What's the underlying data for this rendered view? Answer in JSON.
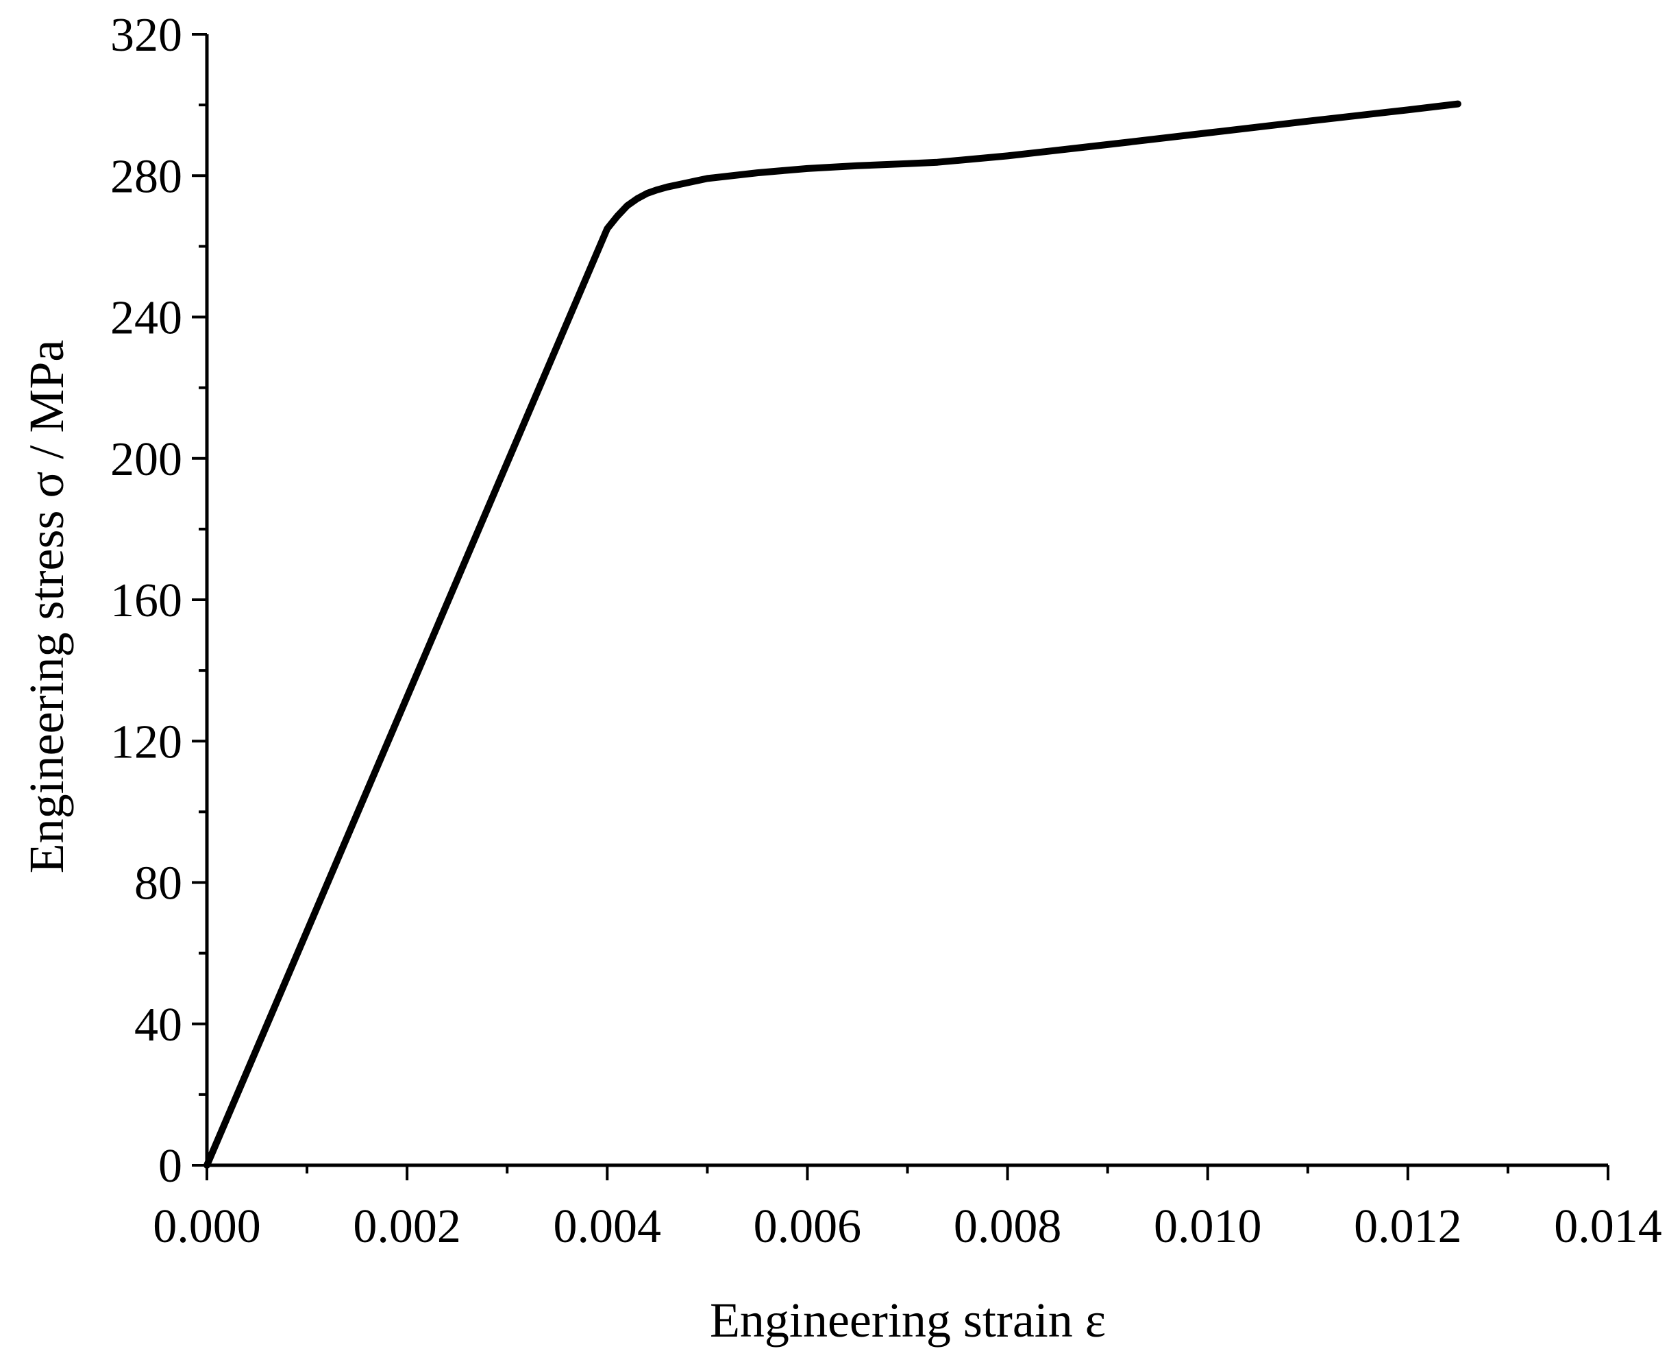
{
  "chart_data": {
    "type": "line",
    "xlabel": "Engineering strain  ε",
    "ylabel": "Engineering stress σ / MPa",
    "xlim": [
      0,
      0.014
    ],
    "ylim": [
      0,
      320
    ],
    "x_ticks": [
      0,
      0.002,
      0.004,
      0.006,
      0.008,
      0.01,
      0.012,
      0.014
    ],
    "x_tick_labels": [
      "0.000",
      "0.002",
      "0.004",
      "0.006",
      "0.008",
      "0.010",
      "0.012",
      "0.014"
    ],
    "y_ticks": [
      0,
      40,
      80,
      120,
      160,
      200,
      240,
      280,
      320
    ],
    "y_tick_labels": [
      "0",
      "40",
      "80",
      "120",
      "160",
      "200",
      "240",
      "280",
      "320"
    ],
    "grid": false,
    "colors": {
      "line": "#000000",
      "axis": "#000000",
      "background": "#ffffff"
    },
    "series": [
      {
        "x": [
          0,
          0.004,
          0.0041,
          0.0042,
          0.0043,
          0.0044,
          0.0045,
          0.0046,
          0.0048,
          0.005,
          0.0055,
          0.006,
          0.0065,
          0.007,
          0.0073,
          0.008,
          0.009,
          0.01,
          0.011,
          0.012,
          0.0125
        ],
        "y": [
          0,
          265,
          268.5,
          271.5,
          273.5,
          275.0,
          276.0,
          276.8,
          278.0,
          279.2,
          280.8,
          282.0,
          282.8,
          283.4,
          283.8,
          285.6,
          288.8,
          292.1,
          295.4,
          298.6,
          300.3
        ]
      }
    ]
  }
}
